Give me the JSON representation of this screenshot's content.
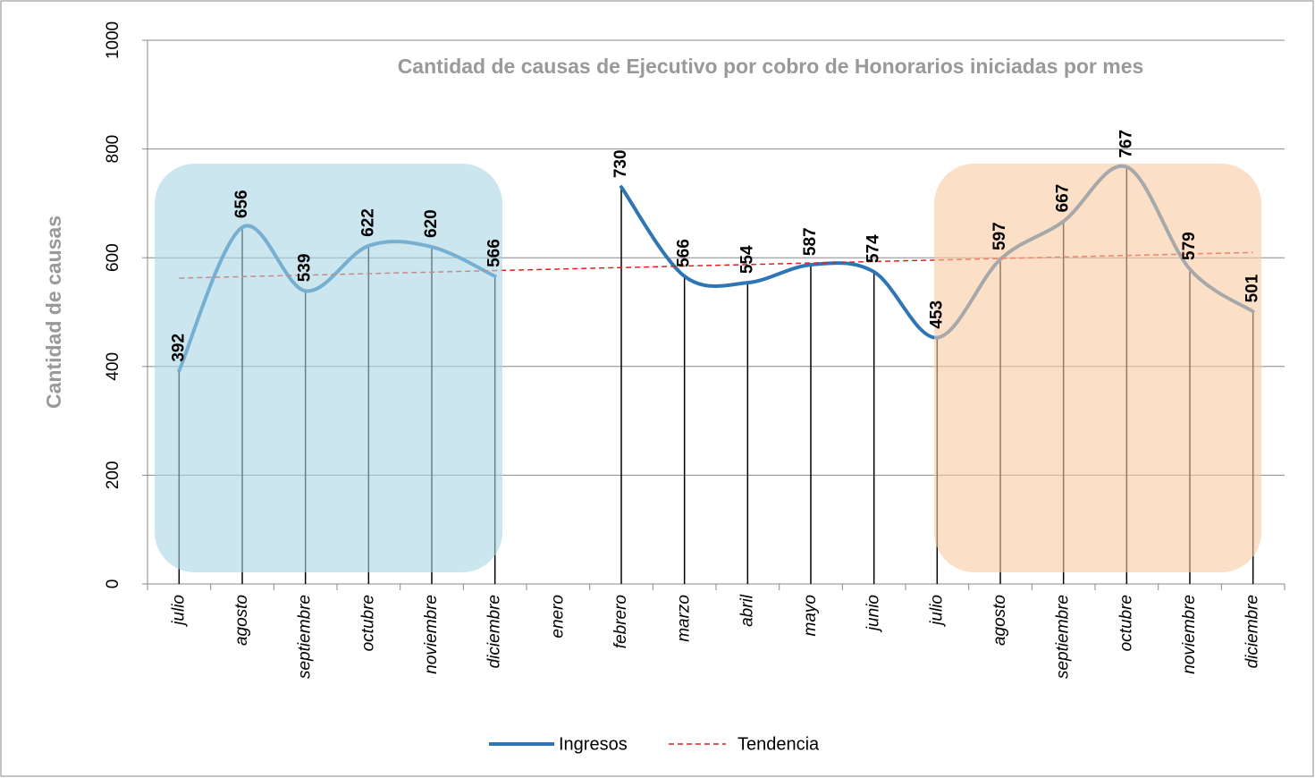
{
  "chart_data": {
    "type": "line",
    "title": "Cantidad de causas de Ejecutivo por cobro de Honorarios iniciadas por mes",
    "y_label": "Cantidad de causas",
    "categories": [
      "julio",
      "agosto",
      "septiembre",
      "octubre",
      "noviembre",
      "diciembre",
      "enero",
      "febrero",
      "marzo",
      "abril",
      "mayo",
      "junio",
      "julio",
      "agosto",
      "septiembre",
      "octubre",
      "noviembre",
      "diciembre"
    ],
    "series": [
      {
        "name": "Ingresos",
        "color": "#2e75b6",
        "values": [
          392,
          656,
          539,
          622,
          620,
          566,
          null,
          730,
          566,
          554,
          587,
          574,
          453,
          597,
          667,
          767,
          579,
          501
        ]
      }
    ],
    "trendline": {
      "name": "Tendencia",
      "color": "#e02020"
    },
    "ylim": [
      0,
      1000
    ],
    "yticks": [
      0,
      200,
      400,
      600,
      800,
      1000
    ],
    "grid": true,
    "legend": "bottom"
  }
}
